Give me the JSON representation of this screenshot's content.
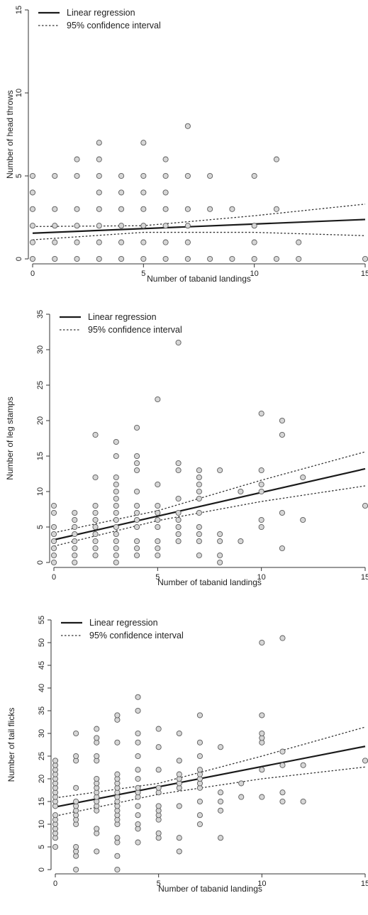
{
  "chart_data": [
    {
      "type": "scatter",
      "xlabel": "Number of tabanid landings",
      "ylabel": "Number of head throws",
      "xlim": [
        0,
        15
      ],
      "ylim": [
        0,
        15
      ],
      "xticks": [
        "0",
        "5",
        "10",
        "15"
      ],
      "yticks": [
        "0",
        "5",
        "10",
        "15"
      ],
      "legend": {
        "position": "top-left",
        "entries": [
          "Linear regression",
          "95% confidence interval"
        ]
      },
      "points": [
        [
          0,
          0
        ],
        [
          0,
          1
        ],
        [
          0,
          2
        ],
        [
          0,
          3
        ],
        [
          0,
          4
        ],
        [
          0,
          5
        ],
        [
          1,
          0
        ],
        [
          1,
          1
        ],
        [
          1,
          2
        ],
        [
          1,
          3
        ],
        [
          1,
          5
        ],
        [
          2,
          0
        ],
        [
          2,
          1
        ],
        [
          2,
          2
        ],
        [
          2,
          3
        ],
        [
          2,
          5
        ],
        [
          2,
          6
        ],
        [
          3,
          0
        ],
        [
          3,
          1
        ],
        [
          3,
          2
        ],
        [
          3,
          3
        ],
        [
          3,
          4
        ],
        [
          3,
          5
        ],
        [
          3,
          6
        ],
        [
          3,
          7
        ],
        [
          4,
          0
        ],
        [
          4,
          1
        ],
        [
          4,
          2
        ],
        [
          4,
          3
        ],
        [
          4,
          4
        ],
        [
          4,
          5
        ],
        [
          5,
          0
        ],
        [
          5,
          1
        ],
        [
          5,
          2
        ],
        [
          5,
          3
        ],
        [
          5,
          4
        ],
        [
          5,
          5
        ],
        [
          5,
          7
        ],
        [
          6,
          0
        ],
        [
          6,
          1
        ],
        [
          6,
          2
        ],
        [
          6,
          3
        ],
        [
          6,
          4
        ],
        [
          6,
          5
        ],
        [
          6,
          6
        ],
        [
          7,
          0
        ],
        [
          7,
          1
        ],
        [
          7,
          2
        ],
        [
          7,
          3
        ],
        [
          7,
          5
        ],
        [
          7,
          8
        ],
        [
          8,
          0
        ],
        [
          8,
          3
        ],
        [
          8,
          5
        ],
        [
          9,
          0
        ],
        [
          9,
          3
        ],
        [
          10,
          0
        ],
        [
          10,
          1
        ],
        [
          10,
          2
        ],
        [
          10,
          5
        ],
        [
          11,
          0
        ],
        [
          11,
          3
        ],
        [
          11,
          6
        ],
        [
          12,
          0
        ],
        [
          12,
          1
        ],
        [
          15,
          0
        ]
      ],
      "regression": {
        "intercept": 1.55,
        "slope": 0.055
      },
      "ci_lower": [
        [
          0,
          1.15
        ],
        [
          5,
          1.6
        ],
        [
          10,
          1.6
        ],
        [
          15,
          1.4
        ]
      ],
      "ci_upper": [
        [
          0,
          1.95
        ],
        [
          5,
          2.0
        ],
        [
          10,
          2.6
        ],
        [
          15,
          3.3
        ]
      ]
    },
    {
      "type": "scatter",
      "xlabel": "Number of tabanid landings",
      "ylabel": "Number of leg stamps",
      "xlim": [
        0,
        15
      ],
      "ylim": [
        0,
        35
      ],
      "xticks": [
        "0",
        "5",
        "10",
        "15"
      ],
      "yticks": [
        "0",
        "5",
        "10",
        "15",
        "20",
        "25",
        "30",
        "35"
      ],
      "legend": {
        "position": "top-left",
        "entries": [
          "Linear regression",
          "95% confidence interval"
        ]
      },
      "points": [
        [
          0,
          0
        ],
        [
          0,
          1
        ],
        [
          0,
          2
        ],
        [
          0,
          3
        ],
        [
          0,
          4
        ],
        [
          0,
          5
        ],
        [
          0,
          7
        ],
        [
          0,
          8
        ],
        [
          1,
          0
        ],
        [
          1,
          1
        ],
        [
          1,
          2
        ],
        [
          1,
          3
        ],
        [
          1,
          4
        ],
        [
          1,
          5
        ],
        [
          1,
          6
        ],
        [
          1,
          7
        ],
        [
          2,
          1
        ],
        [
          2,
          2
        ],
        [
          2,
          3
        ],
        [
          2,
          4
        ],
        [
          2,
          5
        ],
        [
          2,
          6
        ],
        [
          2,
          7
        ],
        [
          2,
          8
        ],
        [
          2,
          12
        ],
        [
          2,
          18
        ],
        [
          3,
          0
        ],
        [
          3,
          1
        ],
        [
          3,
          2
        ],
        [
          3,
          3
        ],
        [
          3,
          4
        ],
        [
          3,
          5
        ],
        [
          3,
          6
        ],
        [
          3,
          7
        ],
        [
          3,
          8
        ],
        [
          3,
          9
        ],
        [
          3,
          10
        ],
        [
          3,
          11
        ],
        [
          3,
          12
        ],
        [
          3,
          15
        ],
        [
          3,
          17
        ],
        [
          4,
          1
        ],
        [
          4,
          2
        ],
        [
          4,
          3
        ],
        [
          4,
          5
        ],
        [
          4,
          6
        ],
        [
          4,
          7
        ],
        [
          4,
          8
        ],
        [
          4,
          10
        ],
        [
          4,
          13
        ],
        [
          4,
          14
        ],
        [
          4,
          15
        ],
        [
          4,
          19
        ],
        [
          5,
          1
        ],
        [
          5,
          2
        ],
        [
          5,
          3
        ],
        [
          5,
          5
        ],
        [
          5,
          6
        ],
        [
          5,
          7
        ],
        [
          5,
          8
        ],
        [
          5,
          11
        ],
        [
          5,
          23
        ],
        [
          6,
          3
        ],
        [
          6,
          4
        ],
        [
          6,
          5
        ],
        [
          6,
          6
        ],
        [
          6,
          7
        ],
        [
          6,
          9
        ],
        [
          6,
          13
        ],
        [
          6,
          14
        ],
        [
          6,
          31
        ],
        [
          7,
          1
        ],
        [
          7,
          3
        ],
        [
          7,
          4
        ],
        [
          7,
          5
        ],
        [
          7,
          7
        ],
        [
          7,
          9
        ],
        [
          7,
          10
        ],
        [
          7,
          11
        ],
        [
          7,
          12
        ],
        [
          7,
          13
        ],
        [
          8,
          0
        ],
        [
          8,
          1
        ],
        [
          8,
          3
        ],
        [
          8,
          4
        ],
        [
          8,
          13
        ],
        [
          9,
          3
        ],
        [
          9,
          10
        ],
        [
          10,
          5
        ],
        [
          10,
          6
        ],
        [
          10,
          10
        ],
        [
          10,
          11
        ],
        [
          10,
          13
        ],
        [
          10,
          21
        ],
        [
          11,
          2
        ],
        [
          11,
          7
        ],
        [
          11,
          18
        ],
        [
          11,
          20
        ],
        [
          12,
          6
        ],
        [
          12,
          12
        ],
        [
          15,
          8
        ]
      ],
      "regression": {
        "intercept": 3.2,
        "slope": 0.667
      },
      "ci_lower": [
        [
          0,
          2.3
        ],
        [
          5,
          5.9
        ],
        [
          10,
          8.6
        ],
        [
          15,
          10.8
        ]
      ],
      "ci_upper": [
        [
          0,
          4.2
        ],
        [
          5,
          7.3
        ],
        [
          10,
          11.6
        ],
        [
          15,
          15.6
        ]
      ]
    },
    {
      "type": "scatter",
      "xlabel": "Number of tabanid landings",
      "ylabel": "Number of tail flicks",
      "xlim": [
        0,
        15
      ],
      "ylim": [
        0,
        55
      ],
      "xticks": [
        "0",
        "5",
        "10",
        "15"
      ],
      "yticks": [
        "0",
        "5",
        "10",
        "15",
        "20",
        "25",
        "30",
        "35",
        "40",
        "45",
        "50",
        "55"
      ],
      "legend": {
        "position": "top-left",
        "entries": [
          "Linear regression",
          "95% confidence interval"
        ]
      },
      "points": [
        [
          0,
          5
        ],
        [
          0,
          7
        ],
        [
          0,
          8
        ],
        [
          0,
          9
        ],
        [
          0,
          10
        ],
        [
          0,
          11
        ],
        [
          0,
          12
        ],
        [
          0,
          14
        ],
        [
          0,
          15
        ],
        [
          0,
          16
        ],
        [
          0,
          17
        ],
        [
          0,
          18
        ],
        [
          0,
          19
        ],
        [
          0,
          20
        ],
        [
          0,
          21
        ],
        [
          0,
          22
        ],
        [
          0,
          23
        ],
        [
          0,
          24
        ],
        [
          1,
          0
        ],
        [
          1,
          3
        ],
        [
          1,
          4
        ],
        [
          1,
          5
        ],
        [
          1,
          10
        ],
        [
          1,
          11
        ],
        [
          1,
          12
        ],
        [
          1,
          13
        ],
        [
          1,
          14
        ],
        [
          1,
          15
        ],
        [
          1,
          18
        ],
        [
          1,
          24
        ],
        [
          1,
          25
        ],
        [
          1,
          30
        ],
        [
          2,
          4
        ],
        [
          2,
          8
        ],
        [
          2,
          9
        ],
        [
          2,
          13
        ],
        [
          2,
          14
        ],
        [
          2,
          15
        ],
        [
          2,
          16
        ],
        [
          2,
          17
        ],
        [
          2,
          18
        ],
        [
          2,
          19
        ],
        [
          2,
          20
        ],
        [
          2,
          24
        ],
        [
          2,
          25
        ],
        [
          2,
          28
        ],
        [
          2,
          29
        ],
        [
          2,
          31
        ],
        [
          3,
          0
        ],
        [
          3,
          3
        ],
        [
          3,
          6
        ],
        [
          3,
          7
        ],
        [
          3,
          10
        ],
        [
          3,
          11
        ],
        [
          3,
          12
        ],
        [
          3,
          13
        ],
        [
          3,
          14
        ],
        [
          3,
          15
        ],
        [
          3,
          16
        ],
        [
          3,
          17
        ],
        [
          3,
          18
        ],
        [
          3,
          19
        ],
        [
          3,
          20
        ],
        [
          3,
          21
        ],
        [
          3,
          28
        ],
        [
          3,
          33
        ],
        [
          3,
          34
        ],
        [
          4,
          6
        ],
        [
          4,
          9
        ],
        [
          4,
          10
        ],
        [
          4,
          12
        ],
        [
          4,
          14
        ],
        [
          4,
          16
        ],
        [
          4,
          17
        ],
        [
          4,
          18
        ],
        [
          4,
          20
        ],
        [
          4,
          22
        ],
        [
          4,
          25
        ],
        [
          4,
          28
        ],
        [
          4,
          30
        ],
        [
          4,
          35
        ],
        [
          4,
          38
        ],
        [
          5,
          7
        ],
        [
          5,
          8
        ],
        [
          5,
          11
        ],
        [
          5,
          12
        ],
        [
          5,
          13
        ],
        [
          5,
          14
        ],
        [
          5,
          17
        ],
        [
          5,
          18
        ],
        [
          5,
          22
        ],
        [
          5,
          27
        ],
        [
          5,
          31
        ],
        [
          6,
          4
        ],
        [
          6,
          7
        ],
        [
          6,
          14
        ],
        [
          6,
          18
        ],
        [
          6,
          19
        ],
        [
          6,
          20
        ],
        [
          6,
          21
        ],
        [
          6,
          24
        ],
        [
          6,
          30
        ],
        [
          7,
          10
        ],
        [
          7,
          12
        ],
        [
          7,
          15
        ],
        [
          7,
          18
        ],
        [
          7,
          19
        ],
        [
          7,
          20
        ],
        [
          7,
          21
        ],
        [
          7,
          22
        ],
        [
          7,
          25
        ],
        [
          7,
          28
        ],
        [
          7,
          34
        ],
        [
          8,
          7
        ],
        [
          8,
          13
        ],
        [
          8,
          15
        ],
        [
          8,
          17
        ],
        [
          8,
          27
        ],
        [
          9,
          16
        ],
        [
          9,
          19
        ],
        [
          10,
          16
        ],
        [
          10,
          22
        ],
        [
          10,
          28
        ],
        [
          10,
          29
        ],
        [
          10,
          30
        ],
        [
          10,
          34
        ],
        [
          10,
          50
        ],
        [
          11,
          15
        ],
        [
          11,
          17
        ],
        [
          11,
          23
        ],
        [
          11,
          26
        ],
        [
          11,
          51
        ],
        [
          12,
          15
        ],
        [
          12,
          23
        ],
        [
          15,
          24
        ]
      ],
      "regression": {
        "intercept": 13.8,
        "slope": 0.89
      },
      "ci_lower": [
        [
          0,
          11.8
        ],
        [
          5,
          16.6
        ],
        [
          10,
          20.0
        ],
        [
          15,
          22.6
        ]
      ],
      "ci_upper": [
        [
          0,
          15.8
        ],
        [
          5,
          19.0
        ],
        [
          10,
          25.0
        ],
        [
          15,
          31.4
        ]
      ]
    }
  ]
}
